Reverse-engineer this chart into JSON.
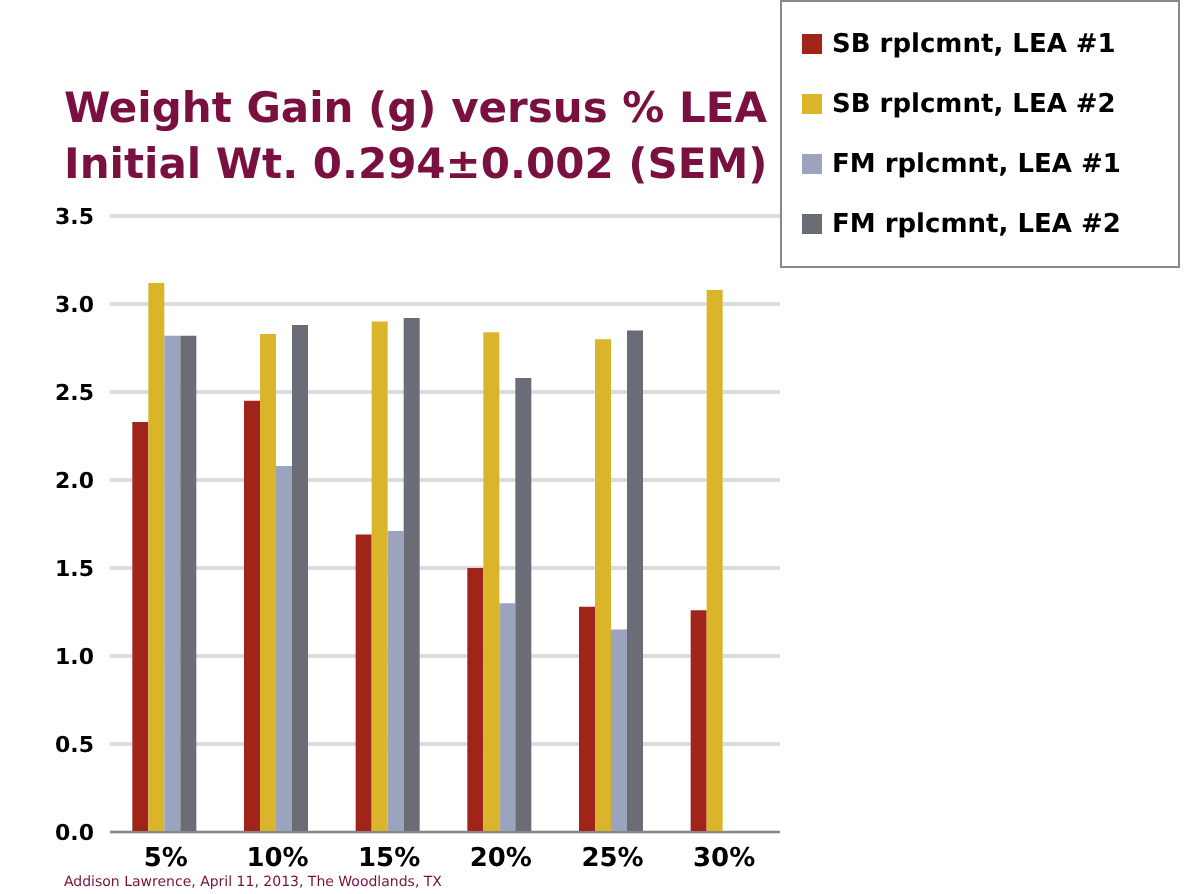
{
  "chart_data": {
    "type": "bar",
    "title": "Weight Gain (g) versus % LEA",
    "subtitle": "Initial Wt. 0.294±0.002 (SEM)",
    "categories": [
      "5%",
      "10%",
      "15%",
      "20%",
      "25%",
      "30%"
    ],
    "series": [
      {
        "name": "SB rplcmnt, LEA #1",
        "color": "#a0241a",
        "values": [
          2.33,
          2.45,
          1.69,
          1.5,
          1.28,
          1.26
        ]
      },
      {
        "name": "SB rplcmnt, LEA #2",
        "color": "#dab52a",
        "values": [
          3.12,
          2.83,
          2.9,
          2.84,
          2.8,
          3.08
        ]
      },
      {
        "name": "FM rplcmnt, LEA #1",
        "color": "#9aa5bd",
        "values": [
          2.82,
          2.08,
          1.71,
          1.3,
          1.15,
          null
        ]
      },
      {
        "name": "FM rplcmnt, LEA #2",
        "color": "#6a6d75",
        "values": [
          2.82,
          2.88,
          2.92,
          2.58,
          2.85,
          null
        ]
      }
    ],
    "ylim": [
      0,
      3.5
    ],
    "yticks": [
      {
        "value": 0,
        "label": "0.0"
      },
      {
        "value": 0.5,
        "label": "0.5"
      },
      {
        "value": 1,
        "label": "1.0"
      },
      {
        "value": 1.5,
        "label": "1.5"
      },
      {
        "value": 2,
        "label": "2.0"
      },
      {
        "value": 2.5,
        "label": "2.5"
      },
      {
        "value": 3,
        "label": "3.0"
      },
      {
        "value": 3.5,
        "label": "3.5"
      }
    ],
    "grid": "y",
    "legend": "top right",
    "annotations": [
      "Addison Lawrence, April 11, 2013, The Woodlands, TX"
    ]
  }
}
